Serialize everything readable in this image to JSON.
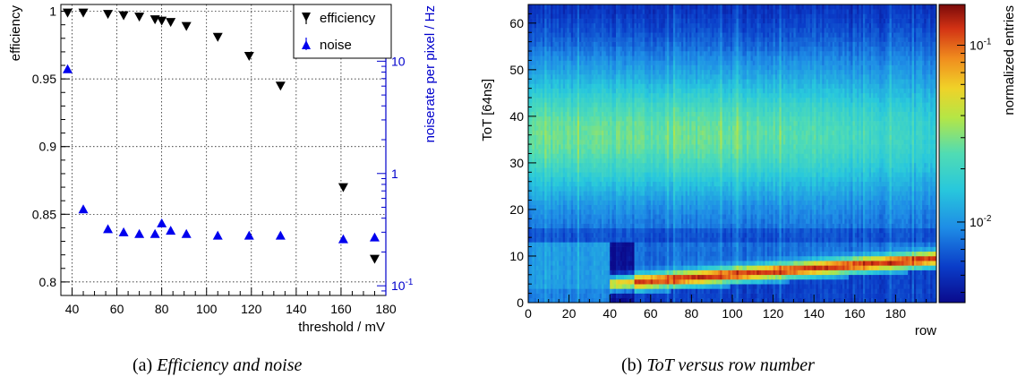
{
  "captions": {
    "left_label": "(a)",
    "left_text": "Efficiency and noise",
    "right_label": "(b)",
    "right_text": "ToT versus row number"
  },
  "colors": {
    "efficiency": "#000000",
    "noise": "#0000ee",
    "right_axis": "#0000cc",
    "grid": "#000000"
  },
  "chart_data": [
    {
      "type": "scatter",
      "xlabel": "threshold / mV",
      "ylabel": "efficiency",
      "y2label": "noiserate per pixel / Hz",
      "xlim": [
        35,
        180
      ],
      "ylim": [
        0.79,
        1.005
      ],
      "y2lim": [
        0.082,
        32
      ],
      "y2scale": "log",
      "grid": true,
      "legend_position": "top-right",
      "xticks": [
        "40",
        "60",
        "80",
        "100",
        "120",
        "140",
        "160",
        "180"
      ],
      "yticks": [
        "0.8",
        "0.85",
        "0.9",
        "0.95",
        "1"
      ],
      "y2ticks": [
        "10^-1",
        "1",
        "10"
      ],
      "series": [
        {
          "name": "efficiency",
          "axis": "left",
          "marker": "triangle-down",
          "x": [
            38,
            45,
            56,
            63,
            70,
            77,
            80,
            84,
            91,
            105,
            119,
            133,
            161,
            175
          ],
          "y": [
            0.999,
            0.999,
            0.998,
            0.997,
            0.996,
            0.994,
            0.993,
            0.992,
            0.989,
            0.981,
            0.967,
            0.945,
            0.87,
            0.817
          ]
        },
        {
          "name": "noise",
          "axis": "right",
          "marker": "triangle-up",
          "x": [
            38,
            45,
            56,
            63,
            70,
            77,
            80,
            84,
            91,
            105,
            119,
            133,
            161,
            175
          ],
          "y": [
            8.5,
            0.48,
            0.32,
            0.3,
            0.29,
            0.29,
            0.36,
            0.31,
            0.29,
            0.28,
            0.28,
            0.28,
            0.26,
            0.27
          ]
        }
      ]
    },
    {
      "type": "heatmap",
      "xlabel": "row",
      "ylabel": "ToT [64ns]",
      "zlabel": "normalized entries",
      "xlim": [
        0,
        199
      ],
      "ylim": [
        0,
        64
      ],
      "zscale": "log",
      "zlim": [
        0.0035,
        0.17
      ],
      "xticks": [
        "0",
        "20",
        "40",
        "60",
        "80",
        "100",
        "120",
        "140",
        "160",
        "180"
      ],
      "yticks": [
        "0",
        "10",
        "20",
        "30",
        "40",
        "50",
        "60"
      ],
      "zticks": [
        "10^-2",
        "10^-1"
      ],
      "ridge_start_row": 40,
      "ridge_tot_at_start": 4,
      "ridge_tot_at_end": 9.5,
      "diffuse_peak_tot": 36
    }
  ]
}
